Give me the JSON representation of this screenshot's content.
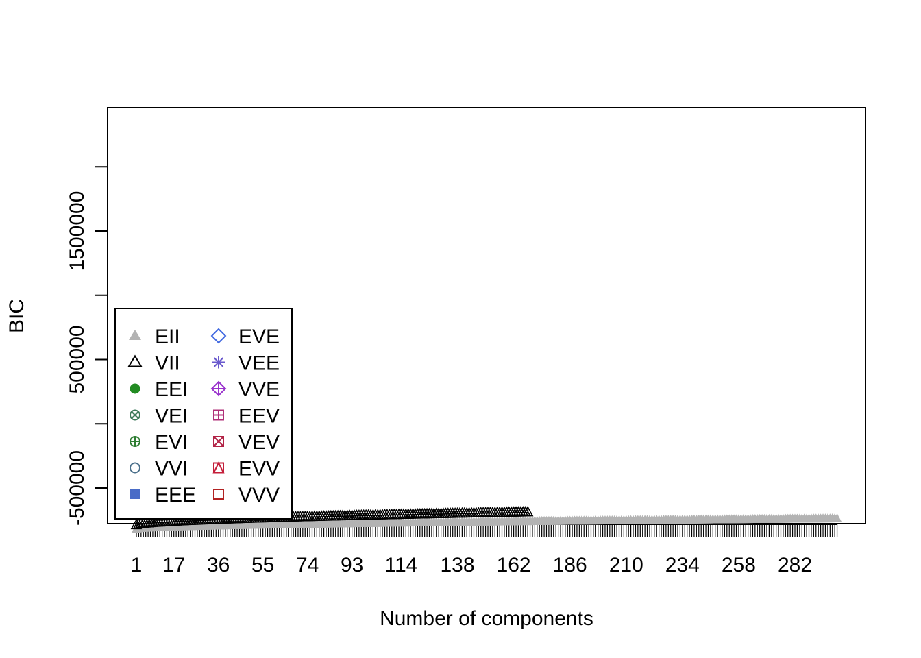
{
  "chart_data": {
    "type": "line",
    "title": "",
    "xlabel": "Number of components",
    "ylabel": "BIC",
    "x_tick_labels": [
      "1",
      "17",
      "36",
      "55",
      "74",
      "93",
      "114",
      "138",
      "162",
      "186",
      "210",
      "234",
      "258",
      "282"
    ],
    "x_tick_values": [
      1,
      17,
      36,
      55,
      74,
      93,
      114,
      138,
      162,
      186,
      210,
      234,
      258,
      282
    ],
    "x_range": [
      1,
      300
    ],
    "y_tick_values": [
      -500000,
      0,
      500000,
      1000000,
      1500000,
      2000000
    ],
    "y_tick_labels": [
      "-500000",
      "",
      "500000",
      "",
      "1500000",
      ""
    ],
    "ylim": [
      -700000,
      2300000
    ],
    "grid": false,
    "legend_position": "bottom-left",
    "legend": [
      {
        "name": "EII",
        "symbol": "triangle-filled",
        "color": "#B3B3B3"
      },
      {
        "name": "VII",
        "symbol": "triangle-open",
        "color": "#000000"
      },
      {
        "name": "EEI",
        "symbol": "circle-filled",
        "color": "#228B22"
      },
      {
        "name": "VEI",
        "symbol": "circle-x",
        "color": "#3E7A5B"
      },
      {
        "name": "EVI",
        "symbol": "circle-plus",
        "color": "#2E7D32"
      },
      {
        "name": "VVI",
        "symbol": "circle-open",
        "color": "#4A6F8A"
      },
      {
        "name": "EEE",
        "symbol": "square-filled",
        "color": "#4A6CC7"
      },
      {
        "name": "EVE",
        "symbol": "diamond-open",
        "color": "#4169E1"
      },
      {
        "name": "VEE",
        "symbol": "asterisk",
        "color": "#6A5ACD"
      },
      {
        "name": "VVE",
        "symbol": "diamond-plus",
        "color": "#9932CC"
      },
      {
        "name": "EEV",
        "symbol": "square-plus",
        "color": "#B03078"
      },
      {
        "name": "VEV",
        "symbol": "square-x",
        "color": "#B22245"
      },
      {
        "name": "EVV",
        "symbol": "square-triangle",
        "color": "#C41E3A"
      },
      {
        "name": "VVV",
        "symbol": "square-open",
        "color": "#B22222"
      }
    ],
    "series": [
      {
        "name": "EII",
        "x_range": [
          1,
          300
        ],
        "y_start": -820000,
        "y_end": -740000
      },
      {
        "name": "VII",
        "x_range": [
          1,
          168
        ],
        "y_start": -790000,
        "y_end": -690000
      }
    ]
  }
}
